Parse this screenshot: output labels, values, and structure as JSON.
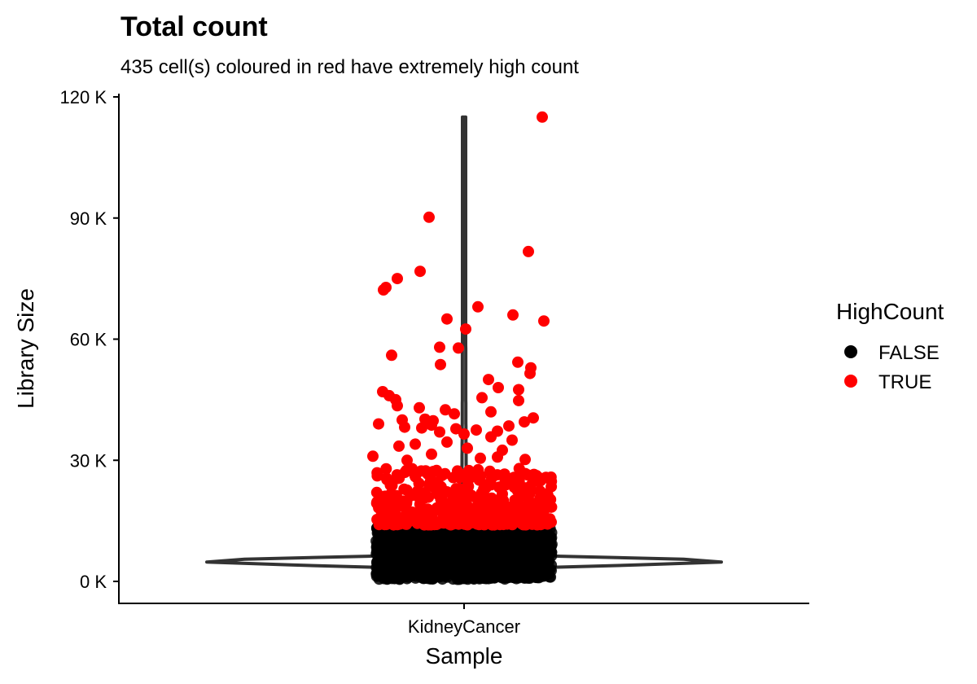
{
  "chart_data": {
    "type": "scatter",
    "subtype": "violin with jittered points",
    "title": "Total count",
    "subtitle": "435 cell(s) coloured in red have extremely high count",
    "xlabel": "Sample",
    "ylabel": "Library Size",
    "categories": [
      "KidneyCancer"
    ],
    "ylim": [
      -3500,
      119000
    ],
    "y_ticks": [
      0,
      30000,
      60000,
      90000,
      120000
    ],
    "y_tick_labels": [
      "0 K",
      "30 K",
      "60 K",
      "90 K",
      "120 K"
    ],
    "grid": false,
    "legend": {
      "title": "HighCount",
      "position": "right",
      "entries": [
        {
          "label": "FALSE",
          "color": "#000000"
        },
        {
          "label": "TRUE",
          "color": "#ff0000"
        }
      ]
    },
    "series": [
      {
        "name": "FALSE",
        "color": "#000000",
        "y_range": [
          500,
          13500
        ],
        "note_count": "dense cloud"
      },
      {
        "name": "TRUE",
        "color": "#ff0000",
        "count": 435,
        "values": [
          115000,
          90200,
          81700,
          76800,
          75000,
          72800,
          72200,
          68000,
          66000,
          65000,
          64500,
          62500,
          58000,
          57800,
          56000,
          54300,
          53700,
          52900,
          51500,
          50000,
          48000,
          47500,
          47000,
          46000,
          45500,
          45000,
          44800,
          43500,
          43000,
          42500,
          42000,
          41500,
          40500,
          40200,
          40000,
          39800,
          39500,
          39000,
          38700,
          38500,
          38200,
          38000,
          37800,
          37500,
          37200,
          37000,
          36500,
          35800,
          35000,
          34500,
          34000,
          33500,
          33000,
          32500,
          31500,
          31000,
          30800,
          30500,
          30200,
          30000
        ]
      }
    ],
    "violin": {
      "color": "#333333",
      "y_min": 500,
      "y_max": 115000,
      "mode_y": 5000
    }
  }
}
